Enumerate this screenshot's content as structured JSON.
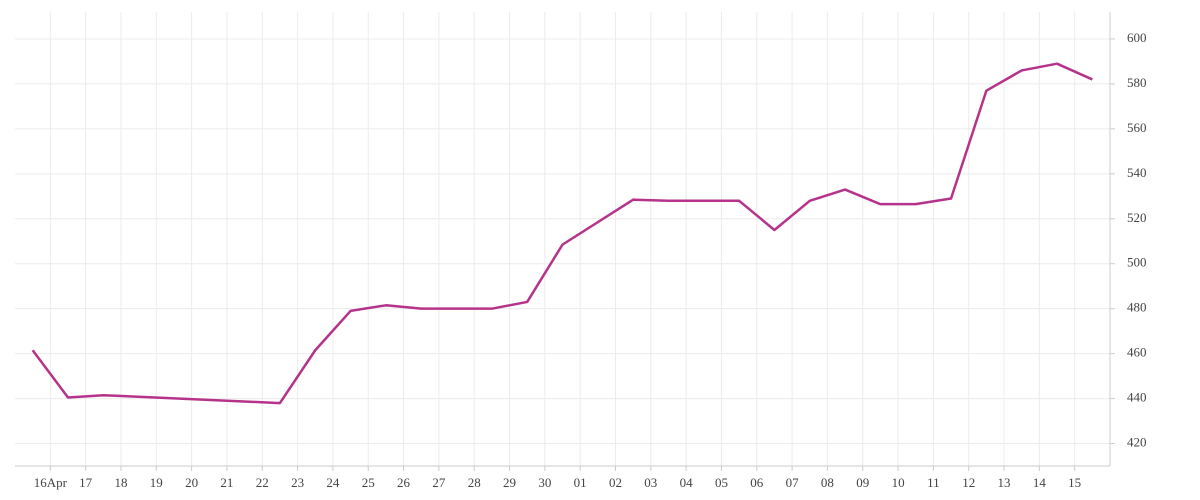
{
  "chart_data": {
    "type": "line",
    "x": [
      -0.5,
      0.5,
      1.5,
      6.5,
      7.5,
      8.5,
      9.5,
      10.5,
      11.5,
      12.5,
      13.5,
      14.5,
      16.5,
      17.5,
      18.5,
      19.5,
      20.5,
      21.5,
      22.5,
      23.5,
      24.5,
      25.5,
      26.5,
      27.5,
      28.5,
      29.5
    ],
    "series": [
      {
        "color": "#b5338a",
        "values": [
          461.5,
          440.5,
          441.5,
          438,
          461.5,
          479,
          481.5,
          480,
          480,
          480,
          483,
          508.5,
          528.5,
          528,
          528,
          528,
          515,
          528,
          533,
          526.5,
          526.5,
          529,
          577,
          586,
          589,
          582
        ]
      }
    ],
    "xlim": [
      -1,
      30
    ],
    "xticks": [
      {
        "value": 0,
        "label": "16Apr"
      },
      {
        "value": 1,
        "label": "17"
      },
      {
        "value": 2,
        "label": "18"
      },
      {
        "value": 3,
        "label": "19"
      },
      {
        "value": 4,
        "label": "20"
      },
      {
        "value": 5,
        "label": "21"
      },
      {
        "value": 6,
        "label": "22"
      },
      {
        "value": 7,
        "label": "23"
      },
      {
        "value": 8,
        "label": "24"
      },
      {
        "value": 9,
        "label": "25"
      },
      {
        "value": 10,
        "label": "26"
      },
      {
        "value": 11,
        "label": "27"
      },
      {
        "value": 12,
        "label": "28"
      },
      {
        "value": 13,
        "label": "29"
      },
      {
        "value": 14,
        "label": "30"
      },
      {
        "value": 15,
        "label": "01"
      },
      {
        "value": 16,
        "label": "02"
      },
      {
        "value": 17,
        "label": "03"
      },
      {
        "value": 18,
        "label": "04"
      },
      {
        "value": 19,
        "label": "05"
      },
      {
        "value": 20,
        "label": "06"
      },
      {
        "value": 21,
        "label": "07"
      },
      {
        "value": 22,
        "label": "08"
      },
      {
        "value": 23,
        "label": "09"
      },
      {
        "value": 24,
        "label": "10"
      },
      {
        "value": 25,
        "label": "11"
      },
      {
        "value": 26,
        "label": "12"
      },
      {
        "value": 27,
        "label": "13"
      },
      {
        "value": 28,
        "label": "14"
      },
      {
        "value": 29,
        "label": "15"
      }
    ],
    "ylim": [
      410,
      612
    ],
    "yticks": [
      420,
      440,
      460,
      480,
      500,
      520,
      540,
      560,
      580,
      600
    ],
    "grid": true
  }
}
